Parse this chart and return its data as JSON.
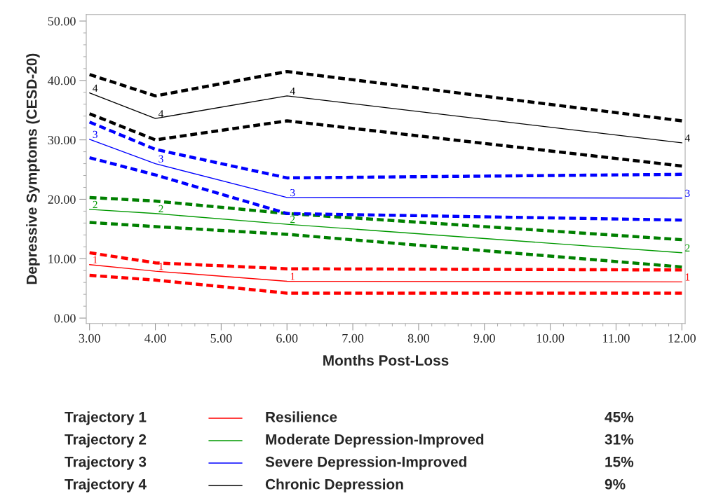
{
  "chart_data": {
    "type": "line",
    "xlabel": "Months Post-Loss",
    "ylabel": "Depressive Symptoms (CESD-20)",
    "x": [
      3,
      4,
      6,
      12
    ],
    "xlim": [
      2.95,
      12.05
    ],
    "ylim": [
      -0.9,
      51.1
    ],
    "xticks": [
      {
        "value": 3,
        "label": "3.00"
      },
      {
        "value": 4,
        "label": "4.00"
      },
      {
        "value": 5,
        "label": "5.00"
      },
      {
        "value": 6,
        "label": "6.00"
      },
      {
        "value": 7,
        "label": "7.00"
      },
      {
        "value": 8,
        "label": "8.00"
      },
      {
        "value": 9,
        "label": "9.00"
      },
      {
        "value": 10,
        "label": "10.00"
      },
      {
        "value": 11,
        "label": "11.00"
      },
      {
        "value": 12,
        "label": "12.00"
      }
    ],
    "yticks": [
      {
        "value": 0,
        "label": "0.00"
      },
      {
        "value": 10,
        "label": "10.00"
      },
      {
        "value": 20,
        "label": "20.00"
      },
      {
        "value": 30,
        "label": "30.00"
      },
      {
        "value": 40,
        "label": "40.00"
      },
      {
        "value": 50,
        "label": "50.00"
      }
    ],
    "grid": false,
    "legend": "bottom",
    "series": [
      {
        "name": "Resilience",
        "color": "#ff0000",
        "values": [
          9.0,
          7.9,
          6.2,
          6.1
        ],
        "line_style": "solid"
      },
      {
        "color": "#ff0000",
        "values": [
          11.0,
          9.3,
          8.3,
          8.1
        ],
        "line_style": "dashed"
      },
      {
        "color": "#ff0000",
        "values": [
          7.2,
          6.4,
          4.2,
          4.2
        ],
        "line_style": "dashed"
      },
      {
        "name": "Moderate Depression-Improved",
        "color": "#009900",
        "values": [
          18.3,
          17.6,
          15.8,
          11.0
        ],
        "line_style": "solid"
      },
      {
        "color": "#008000",
        "values": [
          20.3,
          19.7,
          17.6,
          13.2
        ],
        "line_style": "dashed"
      },
      {
        "color": "#008000",
        "values": [
          16.1,
          15.4,
          14.1,
          8.6
        ],
        "line_style": "dashed"
      },
      {
        "name": "Severe Depression-Improved",
        "color": "#0000ff",
        "values": [
          30.1,
          26.0,
          20.3,
          20.2
        ],
        "line_style": "solid"
      },
      {
        "color": "#0000ff",
        "values": [
          33.0,
          28.4,
          23.6,
          24.2
        ],
        "line_style": "dashed"
      },
      {
        "color": "#0000ff",
        "values": [
          27.0,
          24.1,
          17.6,
          16.5
        ],
        "line_style": "dashed"
      },
      {
        "name": "Chronic Depression",
        "color": "#000000",
        "values": [
          37.9,
          33.6,
          37.4,
          29.5
        ],
        "line_style": "solid"
      },
      {
        "color": "#000000",
        "values": [
          41.0,
          37.4,
          41.5,
          33.2
        ],
        "line_style": "dashed"
      },
      {
        "color": "#000000",
        "values": [
          34.4,
          30.0,
          33.2,
          25.6
        ],
        "line_style": "dashed"
      }
    ],
    "annotations": [
      {
        "text": "1",
        "x": 3,
        "y": 9.0
      },
      {
        "text": "1",
        "x": 4,
        "y": 7.9
      },
      {
        "text": "1",
        "x": 6,
        "y": 6.2
      },
      {
        "text": "1",
        "x": 12,
        "y": 6.1
      },
      {
        "text": "2",
        "x": 3,
        "y": 18.3
      },
      {
        "text": "2",
        "x": 4,
        "y": 17.6
      },
      {
        "text": "2",
        "x": 6,
        "y": 15.8
      },
      {
        "text": "2",
        "x": 12,
        "y": 11.0
      },
      {
        "text": "3",
        "x": 3,
        "y": 30.1
      },
      {
        "text": "3",
        "x": 4,
        "y": 26.0
      },
      {
        "text": "3",
        "x": 6,
        "y": 20.3
      },
      {
        "text": "3",
        "x": 12,
        "y": 20.2
      },
      {
        "text": "4",
        "x": 3,
        "y": 37.9
      },
      {
        "text": "4",
        "x": 4,
        "y": 33.6
      },
      {
        "text": "4",
        "x": 6,
        "y": 37.4
      },
      {
        "text": "4",
        "x": 12,
        "y": 29.5
      },
      "Trajectory 1",
      "45%",
      "Trajectory 2",
      "31%",
      "Trajectory 3",
      "15%",
      "Trajectory 4",
      "9%"
    ]
  }
}
